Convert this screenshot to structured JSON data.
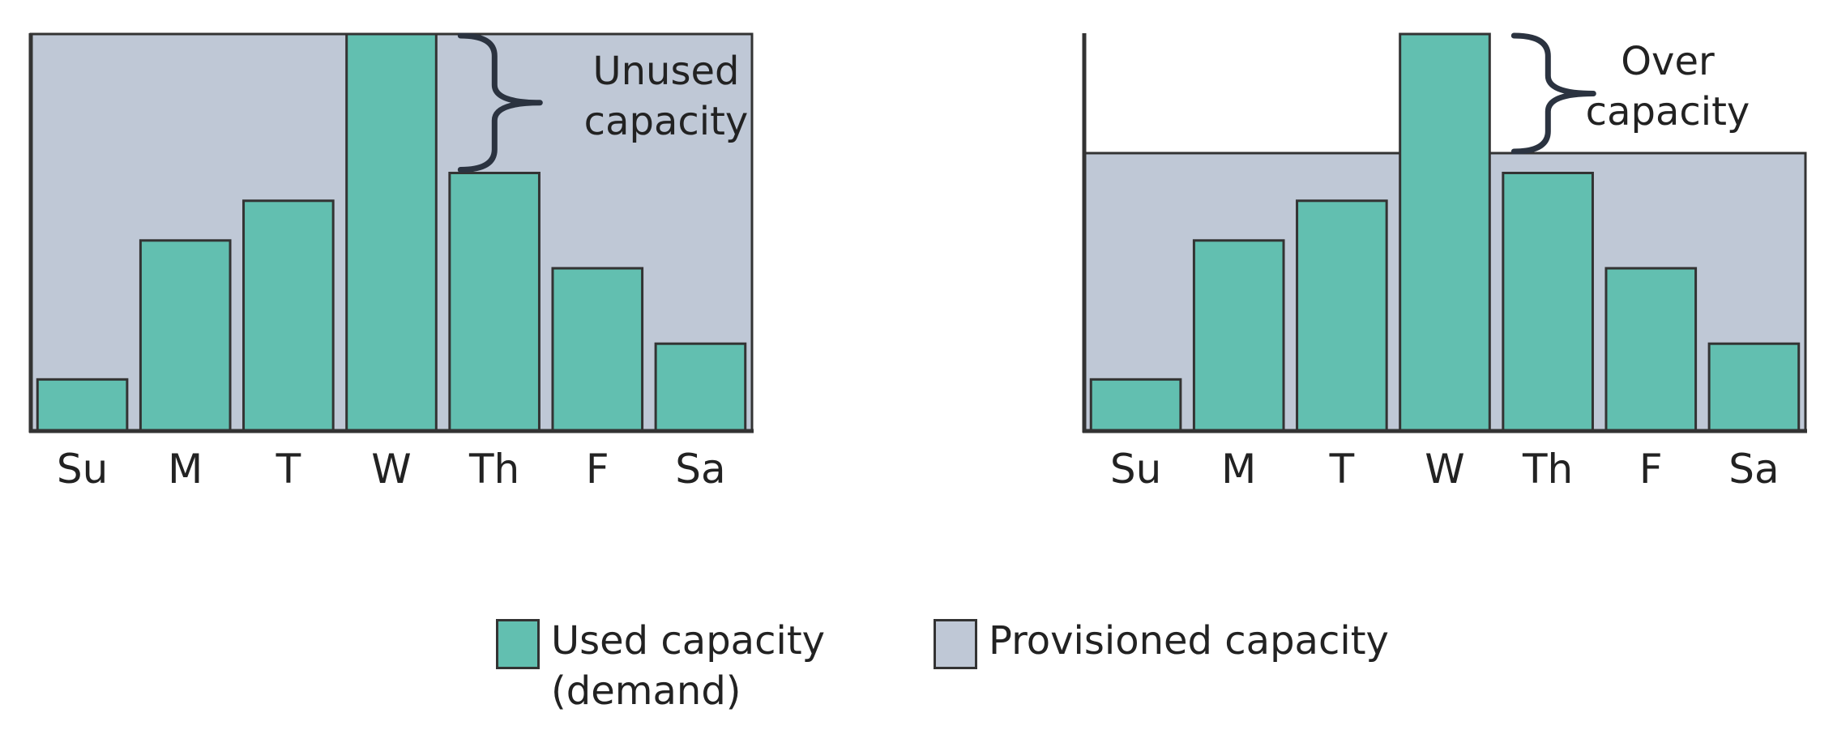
{
  "chart_data": [
    {
      "type": "bar",
      "categories": [
        "Su",
        "M",
        "T",
        "W",
        "Th",
        "F",
        "Sa"
      ],
      "series": [
        {
          "name": "Used capacity (demand)",
          "values": [
            13,
            48,
            58,
            100,
            65,
            41,
            22
          ]
        }
      ],
      "provisioned_capacity": 100,
      "ylim": [
        0,
        100
      ],
      "annotation": "Unused\ncapacity",
      "bar_color": "#62bfb0",
      "provisioned_color": "#bfc8d6"
    },
    {
      "type": "bar",
      "categories": [
        "Su",
        "M",
        "T",
        "W",
        "Th",
        "F",
        "Sa"
      ],
      "series": [
        {
          "name": "Used capacity (demand)",
          "values": [
            13,
            48,
            58,
            100,
            65,
            41,
            22
          ]
        }
      ],
      "provisioned_capacity": 70,
      "ylim": [
        0,
        100
      ],
      "annotation": "Over\ncapacity",
      "bar_color": "#62bfb0",
      "provisioned_color": "#bfc8d6"
    }
  ],
  "legend": {
    "used_label": "Used capacity\n(demand)",
    "provisioned_label": "Provisioned capacity",
    "used_color": "#62bfb0",
    "provisioned_color": "#bfc8d6"
  }
}
